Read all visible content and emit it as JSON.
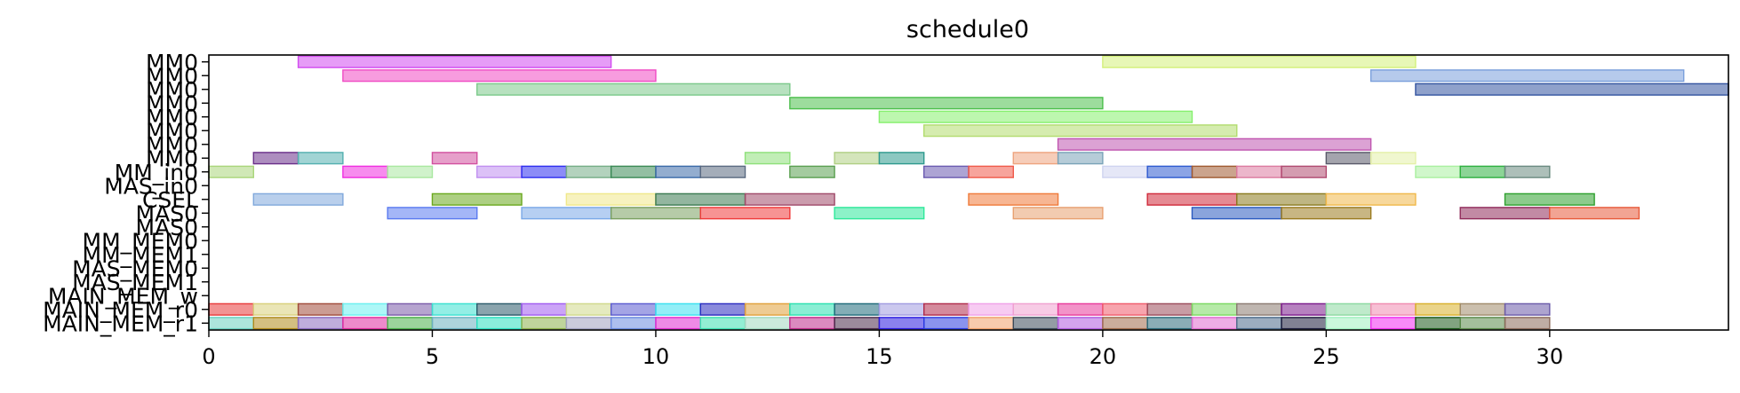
{
  "chart_data": {
    "type": "gantt",
    "title": "schedule0",
    "xlabel": "",
    "ylabel": "",
    "xlim": [
      0,
      34
    ],
    "x_ticks": [
      0,
      5,
      10,
      15,
      20,
      25,
      30
    ],
    "x_tick_labels": [
      "0",
      "5",
      "10",
      "15",
      "20",
      "25",
      "30"
    ],
    "grid": false,
    "rows": [
      "MM0",
      "MM0",
      "MM0",
      "MM0",
      "MM0",
      "MM0",
      "MM0",
      "MM0",
      "MM_in0",
      "MAS_in0",
      "CSEL",
      "MAS0",
      "MAS0",
      "MM_MEM0",
      "MM_MEM1",
      "MAS_MEM0",
      "MAS_MEM1",
      "MAIN_MEM_w",
      "MAIN_MEM_r0",
      "MAIN_MEM_r1"
    ],
    "tasks": [
      {
        "row": 0,
        "start": 2,
        "end": 9,
        "color": "#d24bf0"
      },
      {
        "row": 0,
        "start": 20,
        "end": 27,
        "color": "#d3f07a"
      },
      {
        "row": 1,
        "start": 3,
        "end": 10,
        "color": "#f04bc4"
      },
      {
        "row": 1,
        "start": 26,
        "end": 33,
        "color": "#7a9fdc"
      },
      {
        "row": 2,
        "start": 6,
        "end": 13,
        "color": "#7bc98a"
      },
      {
        "row": 2,
        "start": 27,
        "end": 34,
        "color": "#3354a0"
      },
      {
        "row": 3,
        "start": 13,
        "end": 20,
        "color": "#4cbf4c"
      },
      {
        "row": 4,
        "start": 15,
        "end": 22,
        "color": "#86f06e"
      },
      {
        "row": 5,
        "start": 16,
        "end": 23,
        "color": "#b2dc6e"
      },
      {
        "row": 6,
        "start": 19,
        "end": 26,
        "color": "#c055b0"
      },
      {
        "row": 7,
        "start": 1,
        "end": 2,
        "color": "#6a2f8a"
      },
      {
        "row": 7,
        "start": 2,
        "end": 3,
        "color": "#53b0b0"
      },
      {
        "row": 7,
        "start": 5,
        "end": 6,
        "color": "#d2509f"
      },
      {
        "row": 7,
        "start": 12,
        "end": 13,
        "color": "#8ee07a"
      },
      {
        "row": 7,
        "start": 14,
        "end": 15,
        "color": "#b0cf83"
      },
      {
        "row": 7,
        "start": 15,
        "end": 16,
        "color": "#2e9a8e"
      },
      {
        "row": 7,
        "start": 18,
        "end": 19,
        "color": "#eea47f"
      },
      {
        "row": 7,
        "start": 19,
        "end": 20,
        "color": "#7aa3b8"
      },
      {
        "row": 7,
        "start": 25,
        "end": 26,
        "color": "#5a5a6a"
      },
      {
        "row": 7,
        "start": 26,
        "end": 27,
        "color": "#e4f0a8"
      },
      {
        "row": 8,
        "start": 0,
        "end": 1,
        "color": "#a9d67a"
      },
      {
        "row": 8,
        "start": 3,
        "end": 4,
        "color": "#f02ee0"
      },
      {
        "row": 8,
        "start": 4,
        "end": 5,
        "color": "#a9e8a0"
      },
      {
        "row": 8,
        "start": 6,
        "end": 7,
        "color": "#c08ef0"
      },
      {
        "row": 8,
        "start": 7,
        "end": 8,
        "color": "#2e2ef0"
      },
      {
        "row": 8,
        "start": 8,
        "end": 9,
        "color": "#75ad86"
      },
      {
        "row": 8,
        "start": 9,
        "end": 10,
        "color": "#3a8a55"
      },
      {
        "row": 8,
        "start": 10,
        "end": 11,
        "color": "#3a6aa8"
      },
      {
        "row": 8,
        "start": 11,
        "end": 12,
        "color": "#5a6a80"
      },
      {
        "row": 8,
        "start": 13,
        "end": 14,
        "color": "#5aa050"
      },
      {
        "row": 8,
        "start": 16,
        "end": 17,
        "color": "#6a5ab0"
      },
      {
        "row": 8,
        "start": 17,
        "end": 18,
        "color": "#f05a4a"
      },
      {
        "row": 8,
        "start": 20,
        "end": 21,
        "color": "#cfd3f0"
      },
      {
        "row": 8,
        "start": 21,
        "end": 22,
        "color": "#2e5ad0"
      },
      {
        "row": 8,
        "start": 22,
        "end": 23,
        "color": "#a05a30"
      },
      {
        "row": 8,
        "start": 23,
        "end": 24,
        "color": "#dc7aa0"
      },
      {
        "row": 8,
        "start": 24,
        "end": 25,
        "color": "#b04a70"
      },
      {
        "row": 8,
        "start": 27,
        "end": 28,
        "color": "#a9f0a0"
      },
      {
        "row": 8,
        "start": 28,
        "end": 29,
        "color": "#2eb040"
      },
      {
        "row": 8,
        "start": 29,
        "end": 30,
        "color": "#6a8a80"
      },
      {
        "row": 10,
        "start": 1,
        "end": 3,
        "color": "#80a8dc"
      },
      {
        "row": 10,
        "start": 5,
        "end": 7,
        "color": "#6aa81e"
      },
      {
        "row": 10,
        "start": 8,
        "end": 10,
        "color": "#f0e88a"
      },
      {
        "row": 10,
        "start": 10,
        "end": 12,
        "color": "#3a7a50"
      },
      {
        "row": 10,
        "start": 12,
        "end": 14,
        "color": "#a04a6a"
      },
      {
        "row": 10,
        "start": 17,
        "end": 19,
        "color": "#f07a3a"
      },
      {
        "row": 10,
        "start": 21,
        "end": 23,
        "color": "#d02a3a"
      },
      {
        "row": 10,
        "start": 23,
        "end": 25,
        "color": "#8a7a1e"
      },
      {
        "row": 10,
        "start": 25,
        "end": 27,
        "color": "#f0b84a"
      },
      {
        "row": 10,
        "start": 29,
        "end": 31,
        "color": "#2ea02e"
      },
      {
        "row": 11,
        "start": 4,
        "end": 6,
        "color": "#5a7af0"
      },
      {
        "row": 11,
        "start": 7,
        "end": 9,
        "color": "#7aa8e8"
      },
      {
        "row": 11,
        "start": 9,
        "end": 11,
        "color": "#7aa060"
      },
      {
        "row": 11,
        "start": 11,
        "end": 13,
        "color": "#f03a3a"
      },
      {
        "row": 11,
        "start": 14,
        "end": 16,
        "color": "#2ee89a"
      },
      {
        "row": 11,
        "start": 18,
        "end": 20,
        "color": "#e8a070"
      },
      {
        "row": 11,
        "start": 22,
        "end": 24,
        "color": "#2a5ac0"
      },
      {
        "row": 11,
        "start": 24,
        "end": 26,
        "color": "#9a7a1e"
      },
      {
        "row": 11,
        "start": 28,
        "end": 30,
        "color": "#902a5a"
      },
      {
        "row": 11,
        "start": 30,
        "end": 32,
        "color": "#e85a3a"
      },
      {
        "row": 18,
        "start": 0,
        "end": 1,
        "color": "#e83a3a"
      },
      {
        "row": 18,
        "start": 1,
        "end": 2,
        "color": "#d8d07a"
      },
      {
        "row": 18,
        "start": 2,
        "end": 3,
        "color": "#a04a3a"
      },
      {
        "row": 18,
        "start": 3,
        "end": 4,
        "color": "#6af0f0"
      },
      {
        "row": 18,
        "start": 4,
        "end": 5,
        "color": "#7a5aa8"
      },
      {
        "row": 18,
        "start": 5,
        "end": 6,
        "color": "#3ae0d0"
      },
      {
        "row": 18,
        "start": 6,
        "end": 7,
        "color": "#2a5a6a"
      },
      {
        "row": 18,
        "start": 7,
        "end": 8,
        "color": "#a05af0"
      },
      {
        "row": 18,
        "start": 8,
        "end": 9,
        "color": "#d0d88a"
      },
      {
        "row": 18,
        "start": 9,
        "end": 10,
        "color": "#5a5ad0"
      },
      {
        "row": 18,
        "start": 10,
        "end": 11,
        "color": "#3ae0f0"
      },
      {
        "row": 18,
        "start": 11,
        "end": 12,
        "color": "#2a2ac0"
      },
      {
        "row": 18,
        "start": 12,
        "end": 13,
        "color": "#e0a03a"
      },
      {
        "row": 18,
        "start": 13,
        "end": 14,
        "color": "#2ae0b0"
      },
      {
        "row": 18,
        "start": 14,
        "end": 15,
        "color": "#1e6a7a"
      },
      {
        "row": 18,
        "start": 15,
        "end": 16,
        "color": "#a09ae0"
      },
      {
        "row": 18,
        "start": 16,
        "end": 17,
        "color": "#b02a4a"
      },
      {
        "row": 18,
        "start": 17,
        "end": 18,
        "color": "#f0a0e8"
      },
      {
        "row": 18,
        "start": 18,
        "end": 19,
        "color": "#f0a0d0"
      },
      {
        "row": 18,
        "start": 19,
        "end": 20,
        "color": "#e83a9a"
      },
      {
        "row": 18,
        "start": 20,
        "end": 21,
        "color": "#f05a6a"
      },
      {
        "row": 18,
        "start": 21,
        "end": 22,
        "color": "#9a4a5a"
      },
      {
        "row": 18,
        "start": 22,
        "end": 23,
        "color": "#7ad860"
      },
      {
        "row": 18,
        "start": 23,
        "end": 24,
        "color": "#8a7a70"
      },
      {
        "row": 18,
        "start": 24,
        "end": 25,
        "color": "#7a1a8a"
      },
      {
        "row": 18,
        "start": 25,
        "end": 26,
        "color": "#8ad8a0"
      },
      {
        "row": 18,
        "start": 26,
        "end": 27,
        "color": "#f08ab0"
      },
      {
        "row": 18,
        "start": 27,
        "end": 28,
        "color": "#d8b02a"
      },
      {
        "row": 18,
        "start": 28,
        "end": 29,
        "color": "#a08a6a"
      },
      {
        "row": 18,
        "start": 29,
        "end": 30,
        "color": "#6a5aa8"
      },
      {
        "row": 19,
        "start": 0,
        "end": 1,
        "color": "#6ad0c0"
      },
      {
        "row": 19,
        "start": 1,
        "end": 2,
        "color": "#b08a1a"
      },
      {
        "row": 19,
        "start": 2,
        "end": 3,
        "color": "#8a6ac0"
      },
      {
        "row": 19,
        "start": 3,
        "end": 4,
        "color": "#e02aa0"
      },
      {
        "row": 19,
        "start": 4,
        "end": 5,
        "color": "#4ab04a"
      },
      {
        "row": 19,
        "start": 5,
        "end": 6,
        "color": "#6ab0c0"
      },
      {
        "row": 19,
        "start": 6,
        "end": 7,
        "color": "#2ae0c0"
      },
      {
        "row": 19,
        "start": 7,
        "end": 8,
        "color": "#8ab04a"
      },
      {
        "row": 19,
        "start": 8,
        "end": 9,
        "color": "#a0a0c0"
      },
      {
        "row": 19,
        "start": 9,
        "end": 10,
        "color": "#6a8ae0"
      },
      {
        "row": 19,
        "start": 10,
        "end": 11,
        "color": "#e02ad0"
      },
      {
        "row": 19,
        "start": 11,
        "end": 12,
        "color": "#3ae0b0"
      },
      {
        "row": 19,
        "start": 12,
        "end": 13,
        "color": "#a0d8c0"
      },
      {
        "row": 19,
        "start": 13,
        "end": 14,
        "color": "#c02a8a"
      },
      {
        "row": 19,
        "start": 14,
        "end": 15,
        "color": "#4a2a4a"
      },
      {
        "row": 19,
        "start": 15,
        "end": 16,
        "color": "#2a1ae0"
      },
      {
        "row": 19,
        "start": 16,
        "end": 17,
        "color": "#2a3ae0"
      },
      {
        "row": 19,
        "start": 17,
        "end": 18,
        "color": "#f0a06a"
      },
      {
        "row": 19,
        "start": 18,
        "end": 19,
        "color": "#3a4a5a"
      },
      {
        "row": 19,
        "start": 19,
        "end": 20,
        "color": "#b05ae0"
      },
      {
        "row": 19,
        "start": 20,
        "end": 21,
        "color": "#a06a4a"
      },
      {
        "row": 19,
        "start": 21,
        "end": 22,
        "color": "#2a6a7a"
      },
      {
        "row": 19,
        "start": 22,
        "end": 23,
        "color": "#e06ad0"
      },
      {
        "row": 19,
        "start": 23,
        "end": 24,
        "color": "#4a6a8a"
      },
      {
        "row": 19,
        "start": 24,
        "end": 25,
        "color": "#1a1a3a"
      },
      {
        "row": 19,
        "start": 25,
        "end": 26,
        "color": "#a0f0c0"
      },
      {
        "row": 19,
        "start": 26,
        "end": 27,
        "color": "#f02af0"
      },
      {
        "row": 19,
        "start": 27,
        "end": 28,
        "color": "#1a5a1a"
      },
      {
        "row": 19,
        "start": 28,
        "end": 29,
        "color": "#5a8a4a"
      },
      {
        "row": 19,
        "start": 29,
        "end": 30,
        "color": "#8a6a5a"
      }
    ]
  }
}
